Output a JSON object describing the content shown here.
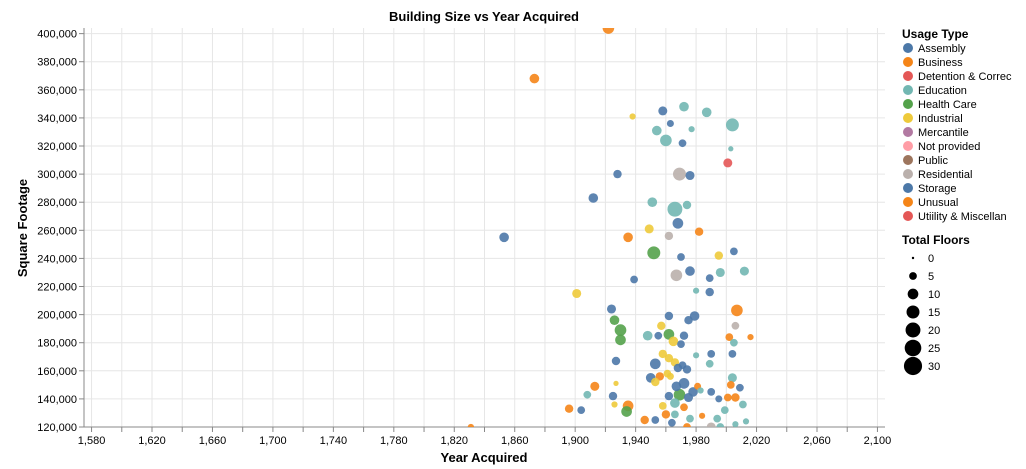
{
  "chart_data": {
    "type": "scatter",
    "title": "Building Size vs Year Acquired",
    "xlabel": "Year Acquired",
    "ylabel": "Square Footage",
    "xlim": [
      1575,
      2105
    ],
    "ylim": [
      120000,
      404000
    ],
    "x_ticks": [
      1580,
      1600,
      1620,
      1640,
      1660,
      1680,
      1700,
      1720,
      1740,
      1760,
      1780,
      1800,
      1820,
      1840,
      1860,
      1880,
      1900,
      1920,
      1940,
      1960,
      1980,
      2000,
      2020,
      2040,
      2060,
      2080,
      2100
    ],
    "x_tick_labels": [
      "1,580",
      "1,620",
      "1,660",
      "1,700",
      "1,740",
      "1,780",
      "1,820",
      "1,860",
      "1,900",
      "1,940",
      "1,980",
      "2,020",
      "2,060",
      "2,100"
    ],
    "y_tick_labels": [
      "120,000",
      "140,000",
      "160,000",
      "180,000",
      "200,000",
      "220,000",
      "240,000",
      "260,000",
      "280,000",
      "300,000",
      "320,000",
      "340,000",
      "360,000",
      "380,000",
      "400,000"
    ],
    "grid": true,
    "legend_placement": "right",
    "color_legend": {
      "title": "Usage Type",
      "entries": [
        {
          "label": "Assembly",
          "color": "#4c78a8"
        },
        {
          "label": "Business",
          "color": "#f58518"
        },
        {
          "label": "Detention & Correc",
          "color": "#e45756"
        },
        {
          "label": "Education",
          "color": "#72b7b2"
        },
        {
          "label": "Health Care",
          "color": "#54a24b"
        },
        {
          "label": "Industrial",
          "color": "#eeca3b"
        },
        {
          "label": "Mercantile",
          "color": "#b279a2"
        },
        {
          "label": "Not provided",
          "color": "#ff9da6"
        },
        {
          "label": "Public",
          "color": "#9d755d"
        },
        {
          "label": "Residential",
          "color": "#bab0ac"
        },
        {
          "label": "Storage",
          "color": "#4c78a8"
        },
        {
          "label": "Unusual",
          "color": "#f58518"
        },
        {
          "label": "Utiility & Miscellan",
          "color": "#e45756"
        }
      ]
    },
    "size_legend": {
      "title": "Total Floors",
      "entries": [
        {
          "label": "0",
          "value": 0
        },
        {
          "label": "5",
          "value": 5
        },
        {
          "label": "10",
          "value": 10
        },
        {
          "label": "15",
          "value": 15
        },
        {
          "label": "20",
          "value": 20
        },
        {
          "label": "25",
          "value": 25
        },
        {
          "label": "30",
          "value": 30
        }
      ]
    },
    "points": [
      {
        "x": 1922,
        "y": 404000,
        "type": "Business",
        "floors": 12
      },
      {
        "x": 1873,
        "y": 368000,
        "type": "Business",
        "floors": 8
      },
      {
        "x": 1938,
        "y": 341000,
        "type": "Industrial",
        "floors": 3
      },
      {
        "x": 1958,
        "y": 345000,
        "type": "Storage",
        "floors": 7
      },
      {
        "x": 1972,
        "y": 348000,
        "type": "Education",
        "floors": 8
      },
      {
        "x": 1987,
        "y": 344000,
        "type": "Education",
        "floors": 8
      },
      {
        "x": 2004,
        "y": 335000,
        "type": "Education",
        "floors": 15
      },
      {
        "x": 1963,
        "y": 336000,
        "type": "Storage",
        "floors": 4
      },
      {
        "x": 1977,
        "y": 332000,
        "type": "Education",
        "floors": 3
      },
      {
        "x": 1954,
        "y": 331000,
        "type": "Education",
        "floors": 8
      },
      {
        "x": 1960,
        "y": 324000,
        "type": "Education",
        "floors": 12
      },
      {
        "x": 1971,
        "y": 322000,
        "type": "Storage",
        "floors": 5
      },
      {
        "x": 2003,
        "y": 318000,
        "type": "Education",
        "floors": 2
      },
      {
        "x": 2001,
        "y": 308000,
        "type": "Detention & Correc",
        "floors": 7
      },
      {
        "x": 1969,
        "y": 300000,
        "type": "Residential",
        "floors": 15
      },
      {
        "x": 1928,
        "y": 300000,
        "type": "Storage",
        "floors": 6
      },
      {
        "x": 1976,
        "y": 299000,
        "type": "Storage",
        "floors": 7
      },
      {
        "x": 1912,
        "y": 283000,
        "type": "Storage",
        "floors": 8
      },
      {
        "x": 1951,
        "y": 280000,
        "type": "Education",
        "floors": 8
      },
      {
        "x": 1966,
        "y": 275000,
        "type": "Education",
        "floors": 20
      },
      {
        "x": 1974,
        "y": 278000,
        "type": "Education",
        "floors": 6
      },
      {
        "x": 1968,
        "y": 265000,
        "type": "Storage",
        "floors": 10
      },
      {
        "x": 1949,
        "y": 261000,
        "type": "Industrial",
        "floors": 7
      },
      {
        "x": 1962,
        "y": 256000,
        "type": "Residential",
        "floors": 6
      },
      {
        "x": 1935,
        "y": 255000,
        "type": "Business",
        "floors": 8
      },
      {
        "x": 1853,
        "y": 255000,
        "type": "Assembly",
        "floors": 8
      },
      {
        "x": 1982,
        "y": 259000,
        "type": "Business",
        "floors": 6
      },
      {
        "x": 2005,
        "y": 245000,
        "type": "Storage",
        "floors": 5
      },
      {
        "x": 1952,
        "y": 244000,
        "type": "Health Care",
        "floors": 15
      },
      {
        "x": 1995,
        "y": 242000,
        "type": "Industrial",
        "floors": 6
      },
      {
        "x": 1970,
        "y": 241000,
        "type": "Storage",
        "floors": 5
      },
      {
        "x": 1976,
        "y": 231000,
        "type": "Storage",
        "floors": 8
      },
      {
        "x": 1996,
        "y": 230000,
        "type": "Education",
        "floors": 7
      },
      {
        "x": 2012,
        "y": 231000,
        "type": "Education",
        "floors": 7
      },
      {
        "x": 1967,
        "y": 228000,
        "type": "Residential",
        "floors": 12
      },
      {
        "x": 1939,
        "y": 225000,
        "type": "Storage",
        "floors": 5
      },
      {
        "x": 1989,
        "y": 226000,
        "type": "Storage",
        "floors": 5
      },
      {
        "x": 1980,
        "y": 217000,
        "type": "Education",
        "floors": 3
      },
      {
        "x": 1989,
        "y": 216000,
        "type": "Storage",
        "floors": 6
      },
      {
        "x": 1901,
        "y": 215000,
        "type": "Industrial",
        "floors": 7
      },
      {
        "x": 2007,
        "y": 203000,
        "type": "Business",
        "floors": 12
      },
      {
        "x": 1924,
        "y": 204000,
        "type": "Storage",
        "floors": 7
      },
      {
        "x": 1979,
        "y": 199000,
        "type": "Storage",
        "floors": 8
      },
      {
        "x": 1962,
        "y": 199000,
        "type": "Storage",
        "floors": 6
      },
      {
        "x": 1975,
        "y": 196000,
        "type": "Storage",
        "floors": 6
      },
      {
        "x": 1926,
        "y": 196000,
        "type": "Health Care",
        "floors": 8
      },
      {
        "x": 1957,
        "y": 192000,
        "type": "Industrial",
        "floors": 6
      },
      {
        "x": 2006,
        "y": 192000,
        "type": "Residential",
        "floors": 5
      },
      {
        "x": 1930,
        "y": 189000,
        "type": "Health Care",
        "floors": 12
      },
      {
        "x": 1962,
        "y": 186000,
        "type": "Health Care",
        "floors": 10
      },
      {
        "x": 1948,
        "y": 185000,
        "type": "Education",
        "floors": 8
      },
      {
        "x": 1955,
        "y": 185000,
        "type": "Storage",
        "floors": 5
      },
      {
        "x": 1972,
        "y": 185000,
        "type": "Assembly",
        "floors": 6
      },
      {
        "x": 2002,
        "y": 184000,
        "type": "Business",
        "floors": 5
      },
      {
        "x": 2016,
        "y": 184000,
        "type": "Business",
        "floors": 3
      },
      {
        "x": 1930,
        "y": 182000,
        "type": "Health Care",
        "floors": 10
      },
      {
        "x": 1965,
        "y": 181000,
        "type": "Industrial",
        "floors": 8
      },
      {
        "x": 2005,
        "y": 180000,
        "type": "Education",
        "floors": 5
      },
      {
        "x": 1970,
        "y": 179000,
        "type": "Storage",
        "floors": 5
      },
      {
        "x": 1958,
        "y": 172000,
        "type": "Industrial",
        "floors": 6
      },
      {
        "x": 1980,
        "y": 171000,
        "type": "Education",
        "floors": 3
      },
      {
        "x": 1990,
        "y": 172000,
        "type": "Storage",
        "floors": 5
      },
      {
        "x": 2004,
        "y": 172000,
        "type": "Storage",
        "floors": 5
      },
      {
        "x": 1962,
        "y": 169000,
        "type": "Industrial",
        "floors": 6
      },
      {
        "x": 1927,
        "y": 167000,
        "type": "Storage",
        "floors": 6
      },
      {
        "x": 1966,
        "y": 166000,
        "type": "Industrial",
        "floors": 6
      },
      {
        "x": 1953,
        "y": 165000,
        "type": "Storage",
        "floors": 10
      },
      {
        "x": 1971,
        "y": 164000,
        "type": "Storage",
        "floors": 5
      },
      {
        "x": 1989,
        "y": 165000,
        "type": "Education",
        "floors": 5
      },
      {
        "x": 1968,
        "y": 162000,
        "type": "Storage",
        "floors": 6
      },
      {
        "x": 1974,
        "y": 161000,
        "type": "Storage",
        "floors": 6
      },
      {
        "x": 1961,
        "y": 158000,
        "type": "Industrial",
        "floors": 5
      },
      {
        "x": 1956,
        "y": 156000,
        "type": "Business",
        "floors": 6
      },
      {
        "x": 1950,
        "y": 155000,
        "type": "Assembly",
        "floors": 8
      },
      {
        "x": 1963,
        "y": 156000,
        "type": "Industrial",
        "floors": 4
      },
      {
        "x": 2004,
        "y": 155000,
        "type": "Education",
        "floors": 7
      },
      {
        "x": 1953,
        "y": 152000,
        "type": "Industrial",
        "floors": 6
      },
      {
        "x": 1972,
        "y": 151000,
        "type": "Storage",
        "floors": 10
      },
      {
        "x": 1927,
        "y": 151000,
        "type": "Industrial",
        "floors": 2
      },
      {
        "x": 1913,
        "y": 149000,
        "type": "Business",
        "floors": 7
      },
      {
        "x": 1967,
        "y": 149000,
        "type": "Storage",
        "floors": 8
      },
      {
        "x": 1981,
        "y": 149000,
        "type": "Business",
        "floors": 4
      },
      {
        "x": 2003,
        "y": 150000,
        "type": "Business",
        "floors": 5
      },
      {
        "x": 1983,
        "y": 146000,
        "type": "Education",
        "floors": 3
      },
      {
        "x": 2009,
        "y": 148000,
        "type": "Storage",
        "floors": 5
      },
      {
        "x": 1978,
        "y": 145000,
        "type": "Storage",
        "floors": 8
      },
      {
        "x": 1990,
        "y": 145000,
        "type": "Storage",
        "floors": 5
      },
      {
        "x": 1969,
        "y": 143000,
        "type": "Health Care",
        "floors": 12
      },
      {
        "x": 1908,
        "y": 143000,
        "type": "Education",
        "floors": 5
      },
      {
        "x": 1925,
        "y": 142000,
        "type": "Storage",
        "floors": 6
      },
      {
        "x": 1962,
        "y": 142000,
        "type": "Storage",
        "floors": 6
      },
      {
        "x": 1975,
        "y": 141000,
        "type": "Storage",
        "floors": 7
      },
      {
        "x": 2001,
        "y": 141000,
        "type": "Business",
        "floors": 5
      },
      {
        "x": 2006,
        "y": 141000,
        "type": "Business",
        "floors": 6
      },
      {
        "x": 1995,
        "y": 140000,
        "type": "Storage",
        "floors": 4
      },
      {
        "x": 1966,
        "y": 137000,
        "type": "Education",
        "floors": 8
      },
      {
        "x": 1935,
        "y": 135000,
        "type": "Business",
        "floors": 10
      },
      {
        "x": 1958,
        "y": 135000,
        "type": "Industrial",
        "floors": 5
      },
      {
        "x": 1926,
        "y": 136000,
        "type": "Industrial",
        "floors": 3
      },
      {
        "x": 1972,
        "y": 134000,
        "type": "Business",
        "floors": 5
      },
      {
        "x": 2011,
        "y": 136000,
        "type": "Education",
        "floors": 5
      },
      {
        "x": 1896,
        "y": 133000,
        "type": "Business",
        "floors": 6
      },
      {
        "x": 1904,
        "y": 132000,
        "type": "Assembly",
        "floors": 5
      },
      {
        "x": 1934,
        "y": 131000,
        "type": "Health Care",
        "floors": 10
      },
      {
        "x": 1999,
        "y": 132000,
        "type": "Education",
        "floors": 5
      },
      {
        "x": 1960,
        "y": 129000,
        "type": "Business",
        "floors": 6
      },
      {
        "x": 1966,
        "y": 129000,
        "type": "Education",
        "floors": 5
      },
      {
        "x": 1984,
        "y": 128000,
        "type": "Business",
        "floors": 3
      },
      {
        "x": 1953,
        "y": 125000,
        "type": "Storage",
        "floors": 5
      },
      {
        "x": 1946,
        "y": 125000,
        "type": "Business",
        "floors": 6
      },
      {
        "x": 1976,
        "y": 126000,
        "type": "Education",
        "floors": 5
      },
      {
        "x": 1994,
        "y": 126000,
        "type": "Education",
        "floors": 5
      },
      {
        "x": 1964,
        "y": 123000,
        "type": "Storage",
        "floors": 5
      },
      {
        "x": 2006,
        "y": 122000,
        "type": "Education",
        "floors": 3
      },
      {
        "x": 2013,
        "y": 124000,
        "type": "Education",
        "floors": 3
      },
      {
        "x": 1831,
        "y": 120000,
        "type": "Business",
        "floors": 3
      },
      {
        "x": 1990,
        "y": 120000,
        "type": "Residential",
        "floors": 7
      },
      {
        "x": 1996,
        "y": 120000,
        "type": "Education",
        "floors": 5
      },
      {
        "x": 1974,
        "y": 120000,
        "type": "Business",
        "floors": 5
      }
    ]
  }
}
